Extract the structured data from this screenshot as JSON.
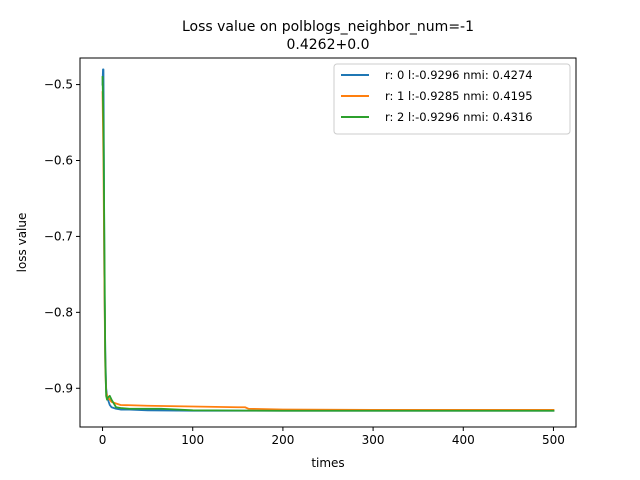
{
  "chart_data": {
    "type": "line",
    "title": "Loss value on polblogs_neighbor_num=-1",
    "subtitle": "0.4262+0.0",
    "xlabel": "times",
    "ylabel": "loss value",
    "xlim": [
      -25,
      525
    ],
    "ylim": [
      -0.951,
      -0.465
    ],
    "xticks": [
      0,
      100,
      200,
      300,
      400,
      500
    ],
    "xtick_labels": [
      "0",
      "100",
      "200",
      "300",
      "400",
      "500"
    ],
    "yticks": [
      -0.5,
      -0.6,
      -0.7,
      -0.8,
      -0.9
    ],
    "ytick_labels": [
      "−0.5",
      "−0.6",
      "−0.7",
      "−0.8",
      "−0.9"
    ],
    "grid": false,
    "legend_position": "top-right",
    "series": [
      {
        "name": "r: 0 l:-0.9296 nmi: 0.4274",
        "color": "#1f77b4",
        "x": [
          0,
          0.5,
          1,
          1.5,
          2,
          3,
          4,
          5,
          6,
          8,
          10,
          15,
          20,
          30,
          50,
          100,
          200,
          300,
          400,
          500
        ],
        "y": [
          -0.5,
          -0.48,
          -0.48,
          -0.6,
          -0.75,
          -0.85,
          -0.9,
          -0.91,
          -0.915,
          -0.922,
          -0.925,
          -0.927,
          -0.928,
          -0.928,
          -0.929,
          -0.9295,
          -0.9296,
          -0.9296,
          -0.9296,
          -0.9296
        ]
      },
      {
        "name": "r: 1 l:-0.9285 nmi: 0.4195",
        "color": "#ff7f0e",
        "x": [
          0,
          1,
          2,
          3,
          4,
          5,
          6,
          8,
          10,
          15,
          20,
          50,
          100,
          150,
          158,
          162,
          200,
          300,
          400,
          500
        ],
        "y": [
          -0.51,
          -0.6,
          -0.75,
          -0.87,
          -0.905,
          -0.91,
          -0.912,
          -0.915,
          -0.918,
          -0.92,
          -0.922,
          -0.923,
          -0.924,
          -0.925,
          -0.925,
          -0.927,
          -0.928,
          -0.9285,
          -0.9285,
          -0.9285
        ]
      },
      {
        "name": "r: 2 l:-0.9296 nmi: 0.4316",
        "color": "#2ca02c",
        "x": [
          0,
          1,
          2,
          3,
          4,
          5,
          6,
          8,
          10,
          15,
          20,
          30,
          50,
          65,
          100,
          200,
          300,
          400,
          500
        ],
        "y": [
          -0.49,
          -0.55,
          -0.7,
          -0.86,
          -0.91,
          -0.915,
          -0.912,
          -0.91,
          -0.915,
          -0.925,
          -0.926,
          -0.927,
          -0.927,
          -0.927,
          -0.929,
          -0.9296,
          -0.9296,
          -0.9296,
          -0.9296
        ]
      }
    ]
  }
}
